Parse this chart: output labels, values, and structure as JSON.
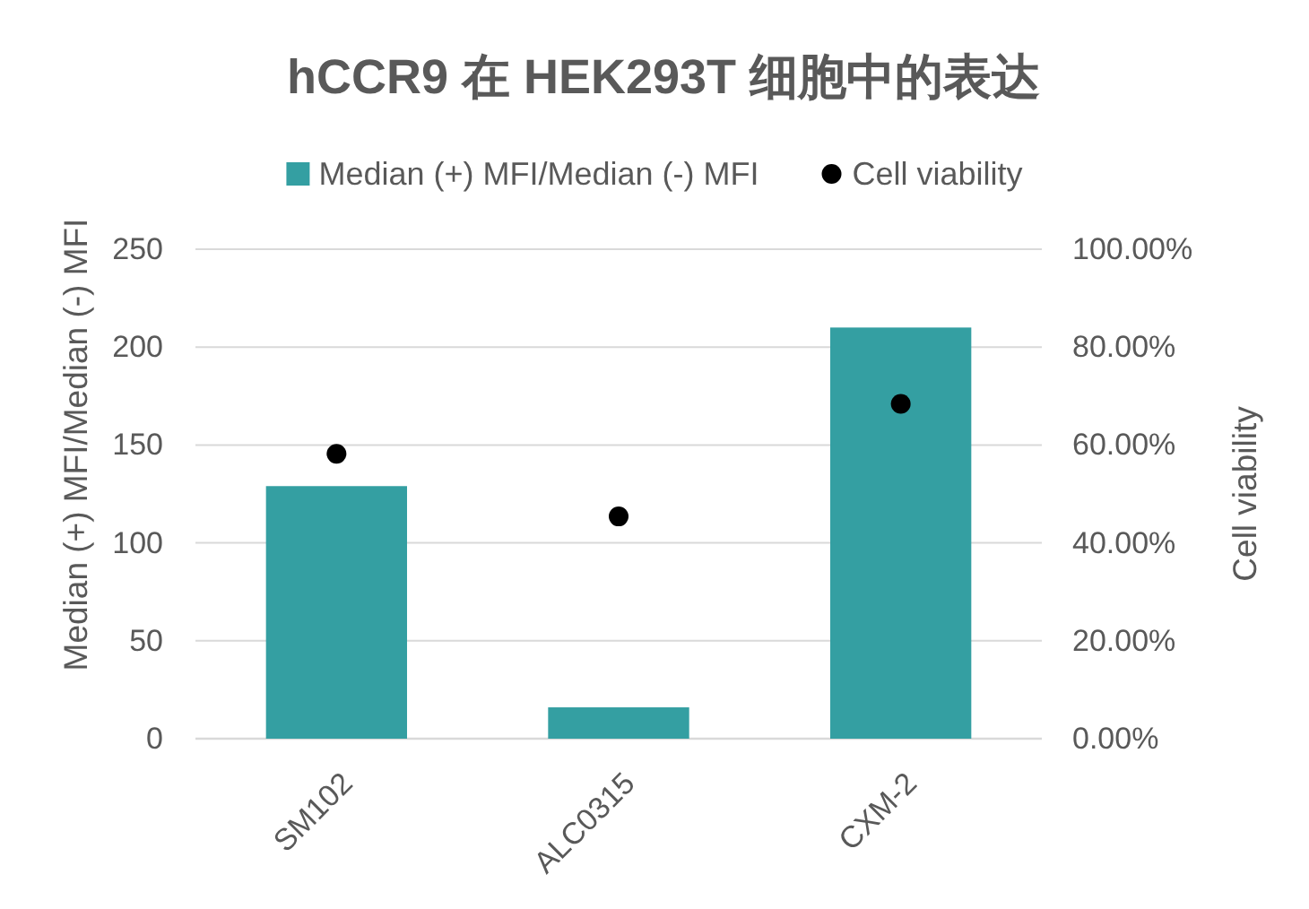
{
  "chart_data": {
    "type": "bar",
    "title": "hCCR9 在 HEK293T 细胞中的表达",
    "ylabel": "Median (+) MFI/Median (-) MFI",
    "y2label": "Cell viability",
    "categories": [
      "SM102",
      "ALC0315",
      "CXM-2"
    ],
    "series": [
      {
        "name": "Median (+) MFI/Median (-) MFI",
        "color": "#349fa2",
        "values": [
          129,
          16,
          210
        ]
      },
      {
        "name": "Cell viability",
        "type": "scatter",
        "axis": "y2",
        "color": "#000000",
        "marker": "circle",
        "values": [
          58.2,
          45.4,
          68.4
        ]
      }
    ],
    "ylim": [
      0,
      250
    ],
    "yticks": [
      0,
      50,
      100,
      150,
      200,
      250
    ],
    "y2lim": [
      0,
      100
    ],
    "y2ticks": [
      {
        "value": 0,
        "label": "0.00%"
      },
      {
        "value": 20,
        "label": "20.00%"
      },
      {
        "value": 40,
        "label": "40.00%"
      },
      {
        "value": 60,
        "label": "60.00%"
      },
      {
        "value": 80,
        "label": "80.00%"
      },
      {
        "value": 100,
        "label": "100.00%"
      }
    ],
    "grid": "y",
    "legend": "top"
  }
}
